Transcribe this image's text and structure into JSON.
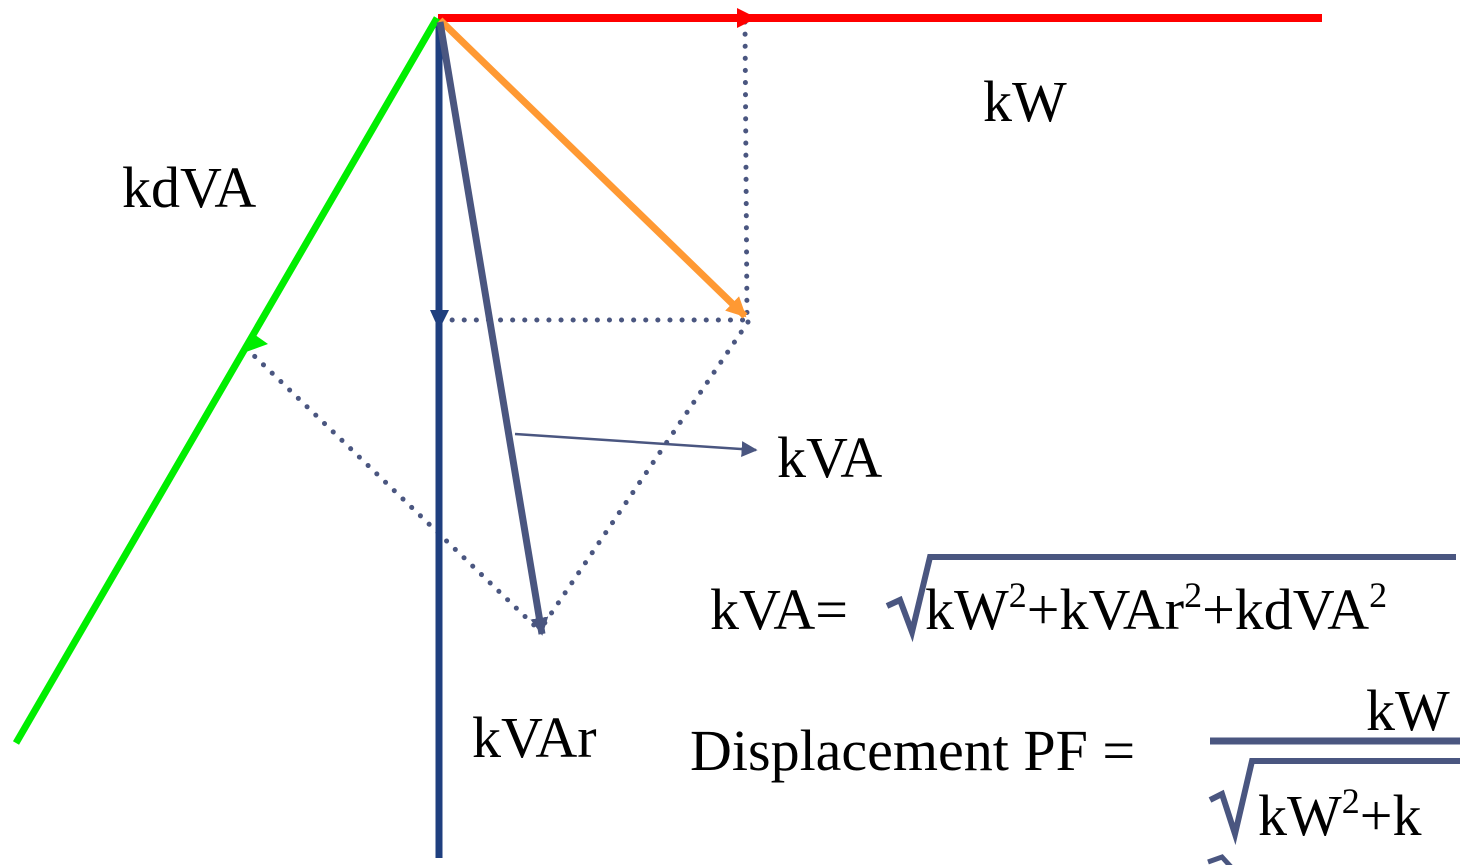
{
  "labels": {
    "kw": "kW",
    "kdva": "kdVA",
    "kva": "kVA",
    "kvar": "kVAr"
  },
  "formulas": {
    "kva_lhs": "kVA=",
    "kva_radicand": {
      "t1": "kW",
      "t2": "+kVAr",
      "t3": "+kdVA",
      "exp": "2"
    },
    "pf_lhs": "Displacement PF =",
    "pf_numerator": "kW",
    "pf_denominator": {
      "t1": "kW",
      "exp": "2",
      "t2": "+k"
    }
  },
  "colors": {
    "kw_vector": "#ff0000",
    "kdva_vector": "#00ee00",
    "kvar_axis": "#1f3f7f",
    "kva_vector": "#4a5680",
    "displacement_vector": "#ff9933",
    "construction_lines": "#4a5680",
    "text": "#000000"
  }
}
